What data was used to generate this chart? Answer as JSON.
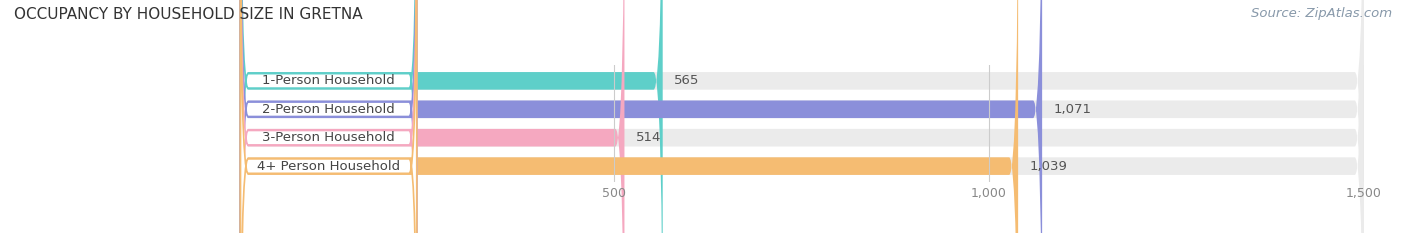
{
  "title": "OCCUPANCY BY HOUSEHOLD SIZE IN GRETNA",
  "source": "Source: ZipAtlas.com",
  "categories": [
    "1-Person Household",
    "2-Person Household",
    "3-Person Household",
    "4+ Person Household"
  ],
  "values": [
    565,
    1071,
    514,
    1039
  ],
  "bar_colors": [
    "#5ecfc9",
    "#8b8fda",
    "#f5a8c0",
    "#f5bc72"
  ],
  "bar_bg_color": "#ebebeb",
  "xlim": [
    0,
    1500
  ],
  "xticks": [
    500,
    1000,
    1500
  ],
  "xtick_labels": [
    "500",
    "1,000",
    "1,500"
  ],
  "background_color": "#ffffff",
  "title_fontsize": 11,
  "label_fontsize": 9.5,
  "value_fontsize": 9.5,
  "source_fontsize": 9.5
}
